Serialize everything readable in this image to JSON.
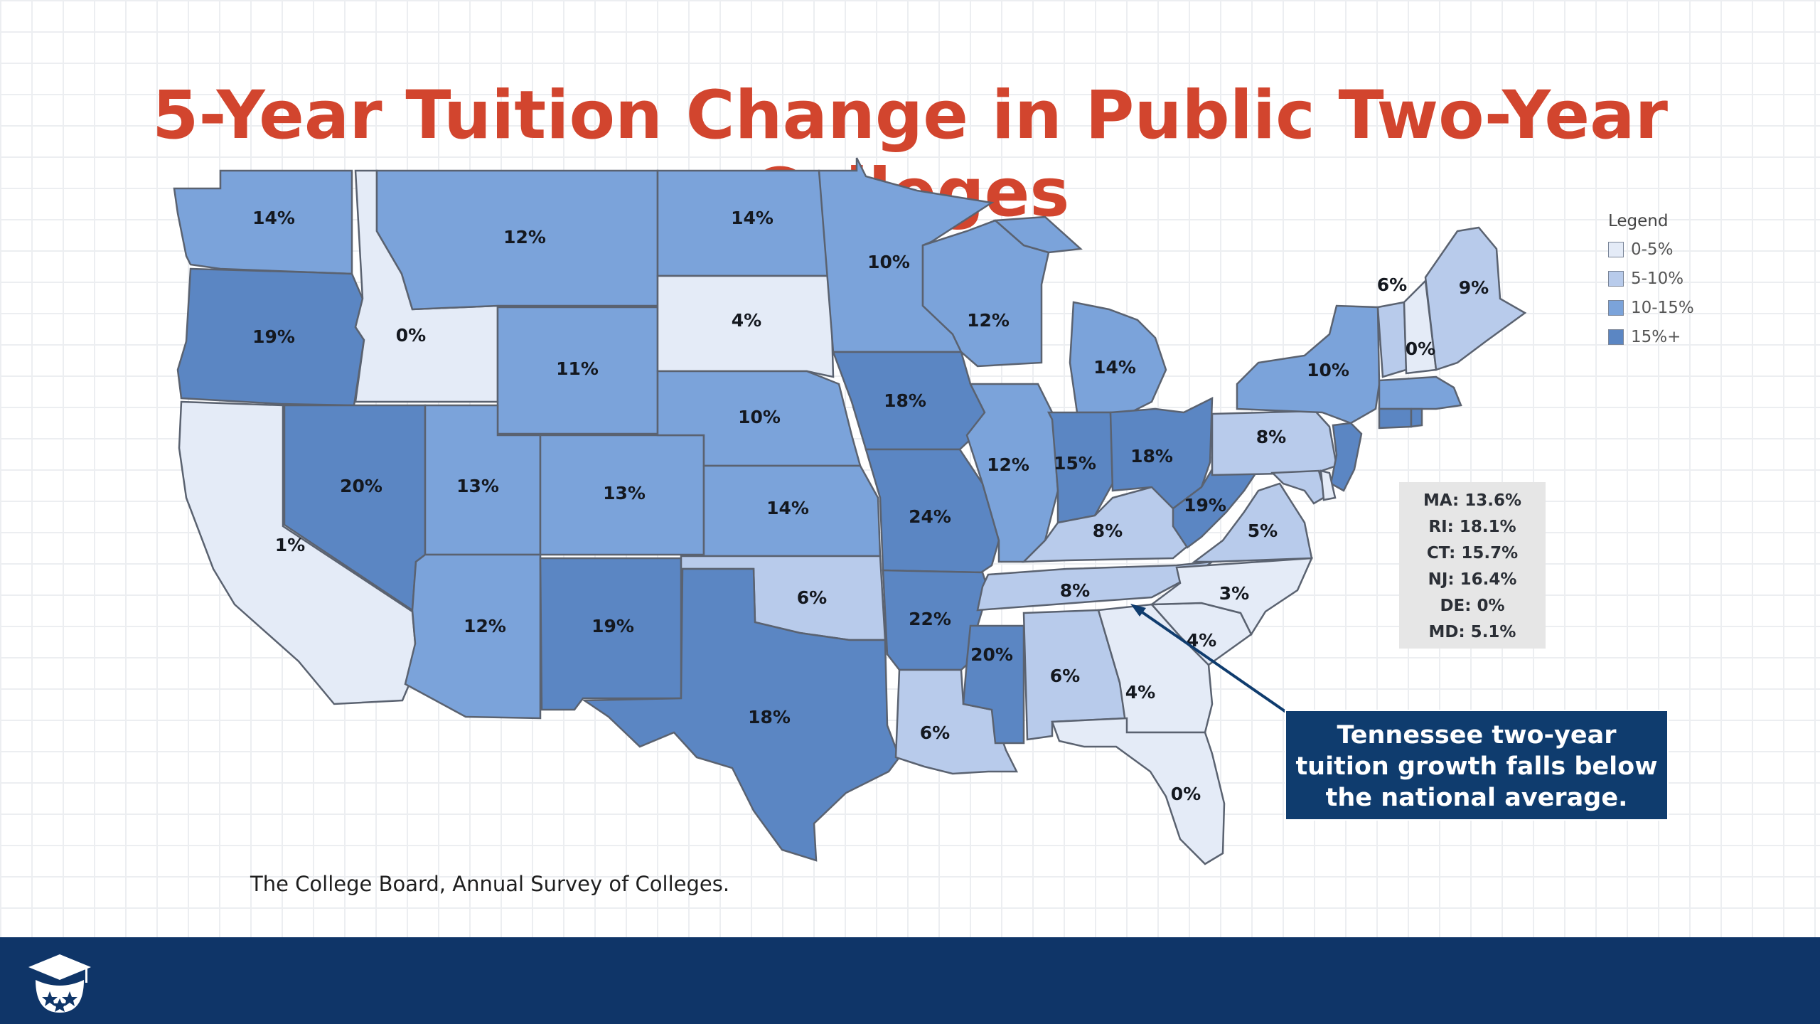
{
  "title": "5-Year Tuition Change in Public Two-Year Colleges",
  "legend": {
    "title": "Legend",
    "items": [
      {
        "label": "0-5%",
        "color": "#e4ebf7"
      },
      {
        "label": "5-10%",
        "color": "#b8cbeb"
      },
      {
        "label": "10-15%",
        "color": "#7ba3da"
      },
      {
        "label": "15%+",
        "color": "#5b86c3"
      }
    ]
  },
  "states": [
    {
      "abbr": "WA",
      "label": "14%",
      "bucket": 2
    },
    {
      "abbr": "OR",
      "label": "19%",
      "bucket": 3
    },
    {
      "abbr": "CA",
      "label": "1%",
      "bucket": 0
    },
    {
      "abbr": "ID",
      "label": "0%",
      "bucket": 0
    },
    {
      "abbr": "NV",
      "label": "20%",
      "bucket": 3
    },
    {
      "abbr": "MT",
      "label": "12%",
      "bucket": 2
    },
    {
      "abbr": "WY",
      "label": "11%",
      "bucket": 2
    },
    {
      "abbr": "UT",
      "label": "13%",
      "bucket": 2
    },
    {
      "abbr": "CO",
      "label": "13%",
      "bucket": 2
    },
    {
      "abbr": "AZ",
      "label": "12%",
      "bucket": 2
    },
    {
      "abbr": "NM",
      "label": "19%",
      "bucket": 3
    },
    {
      "abbr": "ND",
      "label": "14%",
      "bucket": 2
    },
    {
      "abbr": "SD",
      "label": "4%",
      "bucket": 0
    },
    {
      "abbr": "NE",
      "label": "10%",
      "bucket": 2
    },
    {
      "abbr": "KS",
      "label": "14%",
      "bucket": 2
    },
    {
      "abbr": "OK",
      "label": "6%",
      "bucket": 1
    },
    {
      "abbr": "TX",
      "label": "18%",
      "bucket": 3
    },
    {
      "abbr": "MN",
      "label": "10%",
      "bucket": 2
    },
    {
      "abbr": "IA",
      "label": "18%",
      "bucket": 3
    },
    {
      "abbr": "MO",
      "label": "24%",
      "bucket": 3
    },
    {
      "abbr": "AR",
      "label": "22%",
      "bucket": 3
    },
    {
      "abbr": "LA",
      "label": "6%",
      "bucket": 1
    },
    {
      "abbr": "WI",
      "label": "12%",
      "bucket": 2
    },
    {
      "abbr": "IL",
      "label": "12%",
      "bucket": 2
    },
    {
      "abbr": "MS",
      "label": "20%",
      "bucket": 3
    },
    {
      "abbr": "MI",
      "label": "14%",
      "bucket": 2
    },
    {
      "abbr": "IN",
      "label": "15%",
      "bucket": 3
    },
    {
      "abbr": "KY",
      "label": "8%",
      "bucket": 1
    },
    {
      "abbr": "TN",
      "label": "8%",
      "bucket": 1
    },
    {
      "abbr": "AL",
      "label": "6%",
      "bucket": 1
    },
    {
      "abbr": "OH",
      "label": "18%",
      "bucket": 3
    },
    {
      "abbr": "WV",
      "label": "19%",
      "bucket": 3
    },
    {
      "abbr": "GA",
      "label": "4%",
      "bucket": 0
    },
    {
      "abbr": "FL",
      "label": "0%",
      "bucket": 0
    },
    {
      "abbr": "SC",
      "label": "4%",
      "bucket": 0
    },
    {
      "abbr": "NC",
      "label": "3%",
      "bucket": 0
    },
    {
      "abbr": "VA",
      "label": "5%",
      "bucket": 1
    },
    {
      "abbr": "PA",
      "label": "8%",
      "bucket": 1
    },
    {
      "abbr": "NY",
      "label": "10%",
      "bucket": 2
    },
    {
      "abbr": "VT",
      "label": "6%",
      "bucket": 1
    },
    {
      "abbr": "NH",
      "label": "0%",
      "bucket": 0
    },
    {
      "abbr": "ME",
      "label": "9%",
      "bucket": 1
    },
    {
      "abbr": "NJ",
      "label": "",
      "bucket": 3
    },
    {
      "abbr": "MD",
      "label": "",
      "bucket": 1
    },
    {
      "abbr": "DE",
      "label": "",
      "bucket": 0
    },
    {
      "abbr": "MA",
      "label": "",
      "bucket": 2
    },
    {
      "abbr": "CT",
      "label": "",
      "bucket": 3
    },
    {
      "abbr": "RI",
      "label": "",
      "bucket": 3
    }
  ],
  "small_states_box": [
    "MA: 13.6%",
    "RI: 18.1%",
    "CT: 15.7%",
    "NJ: 16.4%",
    "DE: 0%",
    "MD: 5.1%"
  ],
  "callout": {
    "lines": [
      "Tennessee two-year",
      "tuition growth falls below",
      "the national average."
    ],
    "points_to": "TN"
  },
  "source": "The College Board, Annual Survey of Colleges.",
  "colors": {
    "title": "#d2452e",
    "footer": "#0f3568",
    "callout_bg": "#0f3c6e"
  }
}
